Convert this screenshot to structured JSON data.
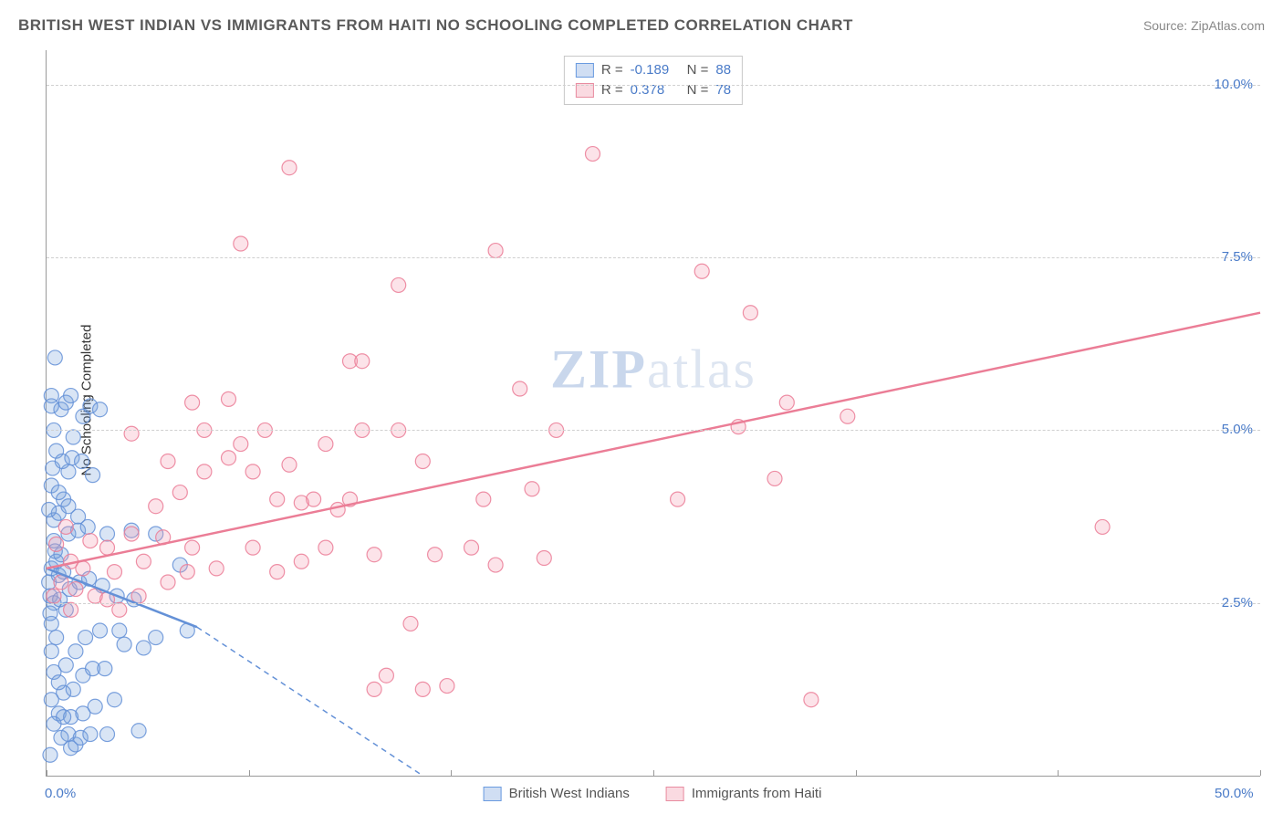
{
  "header": {
    "title": "BRITISH WEST INDIAN VS IMMIGRANTS FROM HAITI NO SCHOOLING COMPLETED CORRELATION CHART",
    "source": "Source: ZipAtlas.com"
  },
  "chart": {
    "type": "scatter",
    "y_label": "No Schooling Completed",
    "xlim": [
      0,
      50
    ],
    "ylim": [
      0,
      10.5
    ],
    "x_ticks": [
      0,
      8.33,
      16.67,
      25,
      33.33,
      41.67,
      50
    ],
    "x_tick_labels": {
      "0": "0.0%",
      "50": "50.0%"
    },
    "y_ticks": [
      2.5,
      5.0,
      7.5,
      10.0
    ],
    "y_tick_labels": [
      "2.5%",
      "5.0%",
      "7.5%",
      "10.0%"
    ],
    "grid_color": "#d0d0d0",
    "axis_color": "#999999",
    "background_color": "#ffffff",
    "tick_label_color": "#4a7bc8",
    "tick_label_fontsize": 15,
    "axis_label_fontsize": 15,
    "marker_radius": 8,
    "marker_fill_opacity": 0.25,
    "marker_stroke_opacity": 0.8,
    "marker_stroke_width": 1.2,
    "line_width": 2.5,
    "dash_pattern": "6 5"
  },
  "legend_top": {
    "rows": [
      {
        "swatch_fill": "rgba(120,160,220,0.35)",
        "swatch_stroke": "#6a9be0",
        "r_label": "R =",
        "r_value": "-0.189",
        "n_label": "N =",
        "n_value": "88"
      },
      {
        "swatch_fill": "rgba(240,150,170,0.35)",
        "swatch_stroke": "#e88ca0",
        "r_label": "R =",
        "r_value": "0.378",
        "n_label": "N =",
        "n_value": "78"
      }
    ]
  },
  "legend_bottom": {
    "items": [
      {
        "swatch_fill": "rgba(120,160,220,0.35)",
        "swatch_stroke": "#6a9be0",
        "label": "British West Indians"
      },
      {
        "swatch_fill": "rgba(240,150,170,0.35)",
        "swatch_stroke": "#e88ca0",
        "label": "Immigrants from Haiti"
      }
    ]
  },
  "watermark": {
    "part1": "ZIP",
    "part2": "atlas"
  },
  "series": [
    {
      "name": "British West Indians",
      "color_fill": "rgba(120,160,220,0.28)",
      "color_stroke": "rgba(100,145,215,0.85)",
      "trend_solid": {
        "x1": 0,
        "y1": 3.0,
        "x2": 6.2,
        "y2": 2.15
      },
      "trend_dash": {
        "x1": 6.2,
        "y1": 2.15,
        "x2": 15.5,
        "y2": 0.0
      },
      "points": [
        [
          0.1,
          2.8
        ],
        [
          0.2,
          3.0
        ],
        [
          0.3,
          2.5
        ],
        [
          0.2,
          2.2
        ],
        [
          0.4,
          3.1
        ],
        [
          0.3,
          3.4
        ],
        [
          0.5,
          2.9
        ],
        [
          0.15,
          2.6
        ],
        [
          0.6,
          3.2
        ],
        [
          0.8,
          2.4
        ],
        [
          0.4,
          2.0
        ],
        [
          0.2,
          1.8
        ],
        [
          0.3,
          1.5
        ],
        [
          0.7,
          1.2
        ],
        [
          0.5,
          0.9
        ],
        [
          0.9,
          0.6
        ],
        [
          1.0,
          0.4
        ],
        [
          1.2,
          0.45
        ],
        [
          1.4,
          0.55
        ],
        [
          1.8,
          0.6
        ],
        [
          2.5,
          0.6
        ],
        [
          3.8,
          0.65
        ],
        [
          0.15,
          0.3
        ],
        [
          0.6,
          0.55
        ],
        [
          1.0,
          0.85
        ],
        [
          1.5,
          0.9
        ],
        [
          2.0,
          1.0
        ],
        [
          2.8,
          1.1
        ],
        [
          0.2,
          1.1
        ],
        [
          0.5,
          1.35
        ],
        [
          0.8,
          1.6
        ],
        [
          1.2,
          1.8
        ],
        [
          1.6,
          2.0
        ],
        [
          2.2,
          2.1
        ],
        [
          3.0,
          2.1
        ],
        [
          4.5,
          2.0
        ],
        [
          5.8,
          2.1
        ],
        [
          0.3,
          3.7
        ],
        [
          0.5,
          3.8
        ],
        [
          0.7,
          4.0
        ],
        [
          0.2,
          4.2
        ],
        [
          0.9,
          4.4
        ],
        [
          0.4,
          4.7
        ],
        [
          1.1,
          4.9
        ],
        [
          0.3,
          5.0
        ],
        [
          1.5,
          5.2
        ],
        [
          0.6,
          5.3
        ],
        [
          1.8,
          5.35
        ],
        [
          2.2,
          5.3
        ],
        [
          0.8,
          5.4
        ],
        [
          0.2,
          5.5
        ],
        [
          1.0,
          5.5
        ],
        [
          0.2,
          5.35
        ],
        [
          0.7,
          2.95
        ],
        [
          0.35,
          3.25
        ],
        [
          0.9,
          3.5
        ],
        [
          1.3,
          3.55
        ],
        [
          1.7,
          3.6
        ],
        [
          2.5,
          3.5
        ],
        [
          3.5,
          3.55
        ],
        [
          4.5,
          3.5
        ],
        [
          5.5,
          3.05
        ],
        [
          0.15,
          2.35
        ],
        [
          0.55,
          2.55
        ],
        [
          0.95,
          2.7
        ],
        [
          1.35,
          2.8
        ],
        [
          1.75,
          2.85
        ],
        [
          2.3,
          2.75
        ],
        [
          2.9,
          2.6
        ],
        [
          3.6,
          2.55
        ],
        [
          0.25,
          4.45
        ],
        [
          0.65,
          4.55
        ],
        [
          1.05,
          4.6
        ],
        [
          1.45,
          4.55
        ],
        [
          1.9,
          4.35
        ],
        [
          0.1,
          3.85
        ],
        [
          0.5,
          4.1
        ],
        [
          0.9,
          3.9
        ],
        [
          1.3,
          3.75
        ],
        [
          0.3,
          0.75
        ],
        [
          0.7,
          0.85
        ],
        [
          1.1,
          1.25
        ],
        [
          1.5,
          1.45
        ],
        [
          1.9,
          1.55
        ],
        [
          2.4,
          1.55
        ],
        [
          0.35,
          6.05
        ],
        [
          3.2,
          1.9
        ],
        [
          4.0,
          1.85
        ]
      ]
    },
    {
      "name": "Immigrants from Haiti",
      "color_fill": "rgba(245,155,175,0.28)",
      "color_stroke": "rgba(235,125,150,0.85)",
      "trend_solid": {
        "x1": 0,
        "y1": 3.0,
        "x2": 50,
        "y2": 6.7
      },
      "trend_dash": null,
      "points": [
        [
          0.3,
          2.6
        ],
        [
          0.6,
          2.8
        ],
        [
          1.0,
          3.1
        ],
        [
          1.5,
          3.0
        ],
        [
          2.0,
          2.6
        ],
        [
          2.5,
          3.3
        ],
        [
          3.0,
          2.4
        ],
        [
          3.5,
          3.5
        ],
        [
          4.0,
          3.1
        ],
        [
          4.5,
          3.9
        ],
        [
          5.0,
          2.8
        ],
        [
          5.5,
          4.1
        ],
        [
          6.0,
          3.3
        ],
        [
          6.5,
          4.4
        ],
        [
          7.0,
          3.0
        ],
        [
          7.5,
          4.6
        ],
        [
          8.0,
          4.8
        ],
        [
          8.5,
          3.3
        ],
        [
          9.0,
          5.0
        ],
        [
          9.5,
          4.0
        ],
        [
          10.0,
          4.5
        ],
        [
          10.5,
          3.1
        ],
        [
          11.0,
          4.0
        ],
        [
          11.5,
          4.8
        ],
        [
          12.0,
          3.85
        ],
        [
          12.5,
          4.0
        ],
        [
          13.0,
          5.0
        ],
        [
          13.5,
          3.2
        ],
        [
          14.0,
          1.45
        ],
        [
          14.5,
          5.0
        ],
        [
          15.0,
          2.2
        ],
        [
          15.5,
          4.55
        ],
        [
          16.0,
          3.2
        ],
        [
          16.5,
          1.3
        ],
        [
          17.5,
          3.3
        ],
        [
          18.0,
          4.0
        ],
        [
          18.5,
          3.05
        ],
        [
          19.5,
          5.6
        ],
        [
          20.0,
          4.15
        ],
        [
          20.5,
          3.15
        ],
        [
          21.0,
          5.0
        ],
        [
          22.5,
          9.0
        ],
        [
          18.5,
          7.6
        ],
        [
          10.0,
          8.8
        ],
        [
          8.0,
          7.7
        ],
        [
          14.5,
          7.1
        ],
        [
          12.5,
          6.0
        ],
        [
          6.0,
          5.4
        ],
        [
          7.5,
          5.45
        ],
        [
          9.5,
          2.95
        ],
        [
          11.5,
          3.3
        ],
        [
          13.5,
          1.25
        ],
        [
          15.5,
          1.25
        ],
        [
          3.5,
          4.95
        ],
        [
          5.0,
          4.55
        ],
        [
          6.5,
          5.0
        ],
        [
          8.5,
          4.4
        ],
        [
          10.5,
          3.95
        ],
        [
          26.0,
          4.0
        ],
        [
          27.0,
          7.3
        ],
        [
          29.0,
          6.7
        ],
        [
          28.5,
          5.05
        ],
        [
          30.0,
          4.3
        ],
        [
          30.5,
          5.4
        ],
        [
          33.0,
          5.2
        ],
        [
          31.5,
          1.1
        ],
        [
          13.0,
          6.0
        ],
        [
          43.5,
          3.6
        ],
        [
          2.5,
          2.55
        ],
        [
          1.0,
          2.4
        ],
        [
          0.4,
          3.35
        ],
        [
          0.8,
          3.6
        ],
        [
          1.2,
          2.7
        ],
        [
          1.8,
          3.4
        ],
        [
          2.8,
          2.95
        ],
        [
          3.8,
          2.6
        ],
        [
          4.8,
          3.45
        ],
        [
          5.8,
          2.95
        ]
      ]
    }
  ]
}
